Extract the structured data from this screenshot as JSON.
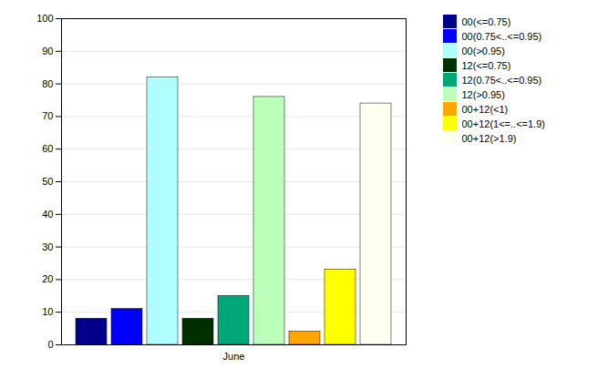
{
  "chart_data": {
    "type": "bar",
    "categories": [
      "June"
    ],
    "series": [
      {
        "name": "00(<=0.75)",
        "color": "#00008B",
        "values": [
          8
        ]
      },
      {
        "name": "00(0.75<..<=0.95)",
        "color": "#0000FF",
        "values": [
          11
        ]
      },
      {
        "name": "00(>0.95)",
        "color": "#B0FFFF",
        "values": [
          82
        ]
      },
      {
        "name": "12(<=0.75)",
        "color": "#003000",
        "values": [
          8
        ]
      },
      {
        "name": "12(0.75<..<=0.95)",
        "color": "#00A878",
        "values": [
          15
        ]
      },
      {
        "name": "12(>0.95)",
        "color": "#BBFFBB",
        "values": [
          76
        ]
      },
      {
        "name": "00+12(<1)",
        "color": "#FFA500",
        "values": [
          4
        ]
      },
      {
        "name": "00+12(1<=..<=1.9)",
        "color": "#FFFF00",
        "values": [
          23
        ]
      },
      {
        "name": "00+12(>1.9)",
        "color": "#FFFFF0",
        "values": [
          74
        ]
      }
    ],
    "ylim": [
      0,
      100
    ],
    "yticks": [
      0,
      10,
      20,
      30,
      40,
      50,
      60,
      70,
      80,
      90,
      100
    ],
    "grid": true,
    "legend": "upper right"
  }
}
